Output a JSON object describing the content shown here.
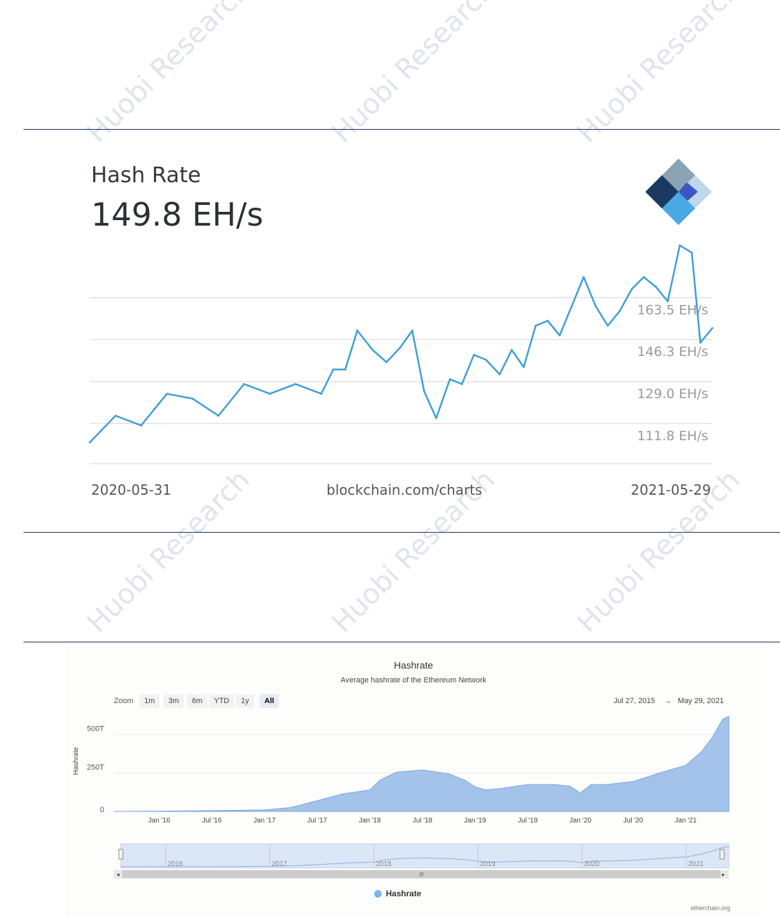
{
  "watermark": "Huobi Research",
  "btc": {
    "title": "Hash Rate",
    "value": "149.8 EH/s",
    "start_date": "2020-05-31",
    "source": "blockchain.com/charts",
    "end_date": "2021-05-29"
  },
  "eth": {
    "title": "Hashrate",
    "subtitle": "Average hashrate of the Ethereum Network",
    "zoom_label": "Zoom",
    "zoom_buttons": [
      "1m",
      "3m",
      "6m",
      "YTD",
      "1y",
      "All"
    ],
    "active_zoom": "All",
    "range_from": "Jul 27, 2015",
    "range_arrow": "→",
    "range_to": "May 29, 2021",
    "legend": "Hashrate",
    "credit": "etherchain.org"
  },
  "colors": {
    "btc_line": "#3d9fd4",
    "eth_fill": "#a4c3ea",
    "eth_line": "#7aa6dc",
    "logo_dark": "#1b3a61",
    "logo_grey": "#8aa3b5",
    "logo_blue": "#3c55c4",
    "logo_light": "#4aa9e3",
    "logo_pale": "#bcd8ea"
  },
  "chart_data": [
    {
      "type": "line",
      "title": "Hash Rate",
      "ylabel": "",
      "x": [
        "2020-05-31",
        "2020-06-15",
        "2020-06-30",
        "2020-07-15",
        "2020-07-30",
        "2020-08-14",
        "2020-08-29",
        "2020-09-13",
        "2020-09-28",
        "2020-10-13",
        "2020-10-20",
        "2020-10-27",
        "2020-11-03",
        "2020-11-12",
        "2020-11-20",
        "2020-11-28",
        "2020-12-05",
        "2020-12-12",
        "2020-12-19",
        "2020-12-27",
        "2021-01-03",
        "2021-01-10",
        "2021-01-17",
        "2021-01-25",
        "2021-02-01",
        "2021-02-08",
        "2021-02-15",
        "2021-02-22",
        "2021-03-01",
        "2021-03-08",
        "2021-03-15",
        "2021-03-22",
        "2021-03-29",
        "2021-04-05",
        "2021-04-12",
        "2021-04-19",
        "2021-04-26",
        "2021-05-03",
        "2021-05-10",
        "2021-05-17",
        "2021-05-22",
        "2021-05-29"
      ],
      "series": [
        {
          "values": [
            104,
            115,
            111,
            124,
            122,
            115,
            128,
            124,
            128,
            124,
            134,
            134,
            150,
            142,
            137,
            143,
            150,
            125,
            114,
            130,
            128,
            140,
            138,
            132,
            142,
            135,
            152,
            154,
            148,
            160,
            172,
            160,
            152,
            158,
            167,
            172,
            168,
            162,
            185,
            182,
            145,
            151
          ]
        }
      ],
      "y_ticks": [
        "163.5 EH/s",
        "146.3 EH/s",
        "129.0 EH/s",
        "111.8 EH/s"
      ],
      "y_tick_values": [
        163.5,
        146.3,
        129.0,
        111.8
      ],
      "ylim": [
        95,
        190
      ],
      "grid": true
    },
    {
      "type": "area",
      "title": "Hashrate",
      "subtitle": "Average hashrate of the Ethereum Network",
      "ylabel": "Hashrate",
      "x": [
        2015.57,
        2016.0,
        2016.5,
        2017.0,
        2017.25,
        2017.5,
        2017.75,
        2018.0,
        2018.1,
        2018.25,
        2018.5,
        2018.75,
        2018.9,
        2019.0,
        2019.1,
        2019.25,
        2019.5,
        2019.75,
        2019.9,
        2020.0,
        2020.1,
        2020.25,
        2020.5,
        2020.75,
        2021.0,
        2021.15,
        2021.25,
        2021.35,
        2021.41
      ],
      "series": [
        {
          "name": "Hashrate",
          "values": [
            0,
            2,
            5,
            10,
            25,
            70,
            115,
            140,
            205,
            255,
            270,
            245,
            205,
            160,
            140,
            150,
            175,
            175,
            165,
            120,
            175,
            175,
            195,
            250,
            300,
            390,
            480,
            600,
            620
          ]
        }
      ],
      "x_ticks": [
        "Jan '16",
        "Jul '16",
        "Jan '17",
        "Jul '17",
        "Jan '18",
        "Jul '18",
        "Jan '19",
        "Jul '19",
        "Jan '20",
        "Jul '20",
        "Jan '21"
      ],
      "y_ticks": [
        "500T",
        "250T",
        "0"
      ],
      "y_tick_values": [
        500,
        250,
        0
      ],
      "navigator_years": [
        "2016",
        "2017",
        "2018",
        "2019",
        "2020",
        "2021"
      ],
      "ylim": [
        0,
        620
      ],
      "grid": true,
      "legend": "bottom"
    }
  ]
}
